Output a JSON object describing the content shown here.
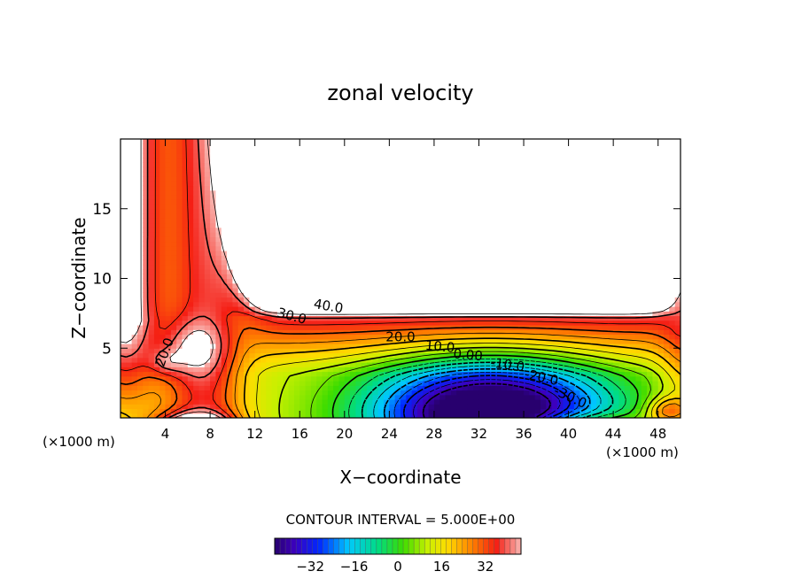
{
  "chart_data": {
    "type": "heatmap",
    "title": "zonal velocity",
    "xlabel": "X−coordinate",
    "ylabel": "Z−coordinate",
    "x_unit_left": "(×1000 m)",
    "x_unit_right": "(×1000 m)",
    "xlim": [
      0,
      50
    ],
    "ylim": [
      0,
      20
    ],
    "xticks": [
      4,
      8,
      12,
      16,
      20,
      24,
      28,
      32,
      36,
      40,
      44,
      48
    ],
    "xtick_labels": [
      "4",
      "8",
      "12",
      "16",
      "20",
      "24",
      "28",
      "32",
      "36",
      "40",
      "44",
      "48"
    ],
    "yticks": [
      5,
      10,
      15
    ],
    "ytick_labels": [
      "5",
      "10",
      "15"
    ],
    "contour_interval_text": "CONTOUR INTERVAL = 5.000E+00",
    "contour_interval": 5.0,
    "contour_labels": [
      {
        "text": "40.0",
        "x": 18.5,
        "z": 7.7,
        "angle": 10
      },
      {
        "text": "30.0",
        "x": 15.2,
        "z": 7.0,
        "angle": 15
      },
      {
        "text": "20.0",
        "x": 25.0,
        "z": 5.5,
        "angle": 0
      },
      {
        "text": "10.0",
        "x": 28.5,
        "z": 4.8,
        "angle": 5
      },
      {
        "text": "0.00",
        "x": 31.0,
        "z": 4.2,
        "angle": 5
      },
      {
        "text": "-10.0",
        "x": 34.5,
        "z": 3.5,
        "angle": 8
      },
      {
        "text": "-20.0",
        "x": 37.5,
        "z": 2.6,
        "angle": 12
      },
      {
        "text": "-30.0",
        "x": 40.0,
        "z": 1.2,
        "angle": 25
      },
      {
        "text": "20.0",
        "x": 4.3,
        "z": 4.6,
        "angle": -70
      }
    ],
    "colorbar": {
      "min": -45,
      "max": 45,
      "ticks": [
        -32,
        -16,
        0,
        16,
        32
      ],
      "tick_labels": [
        "−32",
        "−16",
        "0",
        "16",
        "32"
      ]
    },
    "colors": {
      "above_max": "#ffffff",
      "contour": "#000000"
    }
  }
}
